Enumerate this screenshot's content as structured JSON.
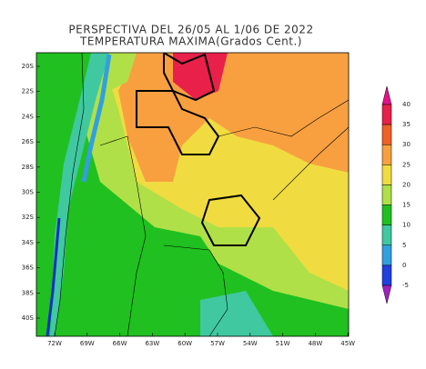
{
  "title": [
    "PERSPECTIVA DEL 26/05 AL 1/06 DE 2022",
    "TEMPERATURA MAXIMA(Grados Cent.)"
  ],
  "lat_labels": [
    "20S",
    "22S",
    "24S",
    "26S",
    "28S",
    "30S",
    "32S",
    "34S",
    "36S",
    "38S",
    "40S"
  ],
  "lon_labels": [
    "72W",
    "69W",
    "66W",
    "63W",
    "60W",
    "57W",
    "54W",
    "51W",
    "48W",
    "45W"
  ],
  "colorbar": {
    "ticks": [
      40,
      35,
      30,
      25,
      20,
      15,
      10,
      5,
      0,
      -5
    ],
    "colors": [
      "#e8108a",
      "#e8204a",
      "#f06028",
      "#f8a040",
      "#f0dc40",
      "#b0e048",
      "#20c020",
      "#40c8a0",
      "#30a0e0",
      "#2040e0",
      "#a020c0"
    ]
  }
}
